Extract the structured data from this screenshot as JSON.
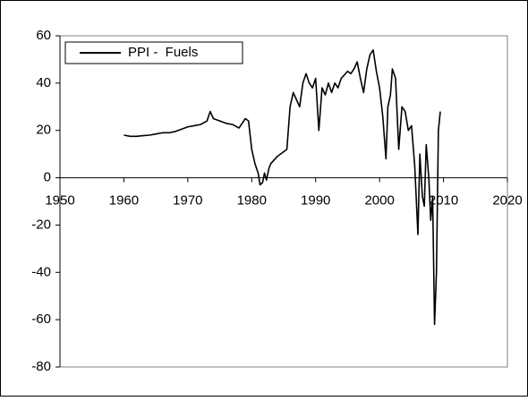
{
  "chart_data": {
    "type": "line",
    "series": [
      {
        "name": "PPI -  Fuels",
        "color": "#000000",
        "x": [
          1960,
          1961,
          1962,
          1963,
          1964,
          1965,
          1966,
          1967,
          1968,
          1969,
          1970,
          1971,
          1972,
          1973,
          1973.5,
          1974,
          1975,
          1976,
          1977,
          1978,
          1978.5,
          1979,
          1979.5,
          1980,
          1980.5,
          1981,
          1981.3,
          1981.7,
          1982,
          1982.3,
          1982.7,
          1983,
          1984,
          1985,
          1985.5,
          1986,
          1986.5,
          1987,
          1987.5,
          1988,
          1988.5,
          1989,
          1989.5,
          1990,
          1990.5,
          1991,
          1991.5,
          1992,
          1992.5,
          1993,
          1993.5,
          1994,
          1995,
          1995.5,
          1996,
          1996.5,
          1997,
          1997.5,
          1998,
          1998.5,
          1999,
          1999.5,
          2000,
          2000.5,
          2001,
          2001.3,
          2001.7,
          2002,
          2002.5,
          2003,
          2003.5,
          2004,
          2004.5,
          2005,
          2005.5,
          2006,
          2006.3,
          2006.7,
          2007,
          2007.3,
          2007.7,
          2008,
          2008.3,
          2008.6,
          2008.9,
          2009.2,
          2009.5
        ],
        "values": [
          18,
          17.5,
          17.5,
          17.8,
          18,
          18.5,
          19,
          19,
          19.5,
          20.5,
          21.5,
          22,
          22.5,
          24,
          28,
          25,
          24,
          23,
          22.5,
          21,
          23,
          25,
          24,
          12,
          6,
          2,
          -3,
          -2,
          2,
          -1,
          4,
          6,
          9,
          11,
          12,
          30,
          36,
          33,
          30,
          40,
          44,
          40,
          38,
          42,
          20,
          38,
          35,
          40,
          36,
          40,
          38,
          42,
          45,
          44,
          46,
          49,
          42,
          36,
          46,
          52,
          54,
          45,
          38,
          26,
          8,
          30,
          35,
          46,
          42,
          12,
          30,
          28,
          20,
          22,
          5,
          -24,
          10,
          -8,
          -12,
          14,
          0,
          -18,
          -8,
          -62,
          -40,
          20,
          28
        ]
      }
    ],
    "xlim": [
      1950,
      2020
    ],
    "xticks": [
      1950,
      1960,
      1970,
      1980,
      1990,
      2000,
      2010,
      2020
    ],
    "ylim": [
      -80,
      60
    ],
    "yticks": [
      -80,
      -60,
      -40,
      -20,
      0,
      20,
      40,
      60
    ],
    "grid": false,
    "legend": "top-left"
  }
}
